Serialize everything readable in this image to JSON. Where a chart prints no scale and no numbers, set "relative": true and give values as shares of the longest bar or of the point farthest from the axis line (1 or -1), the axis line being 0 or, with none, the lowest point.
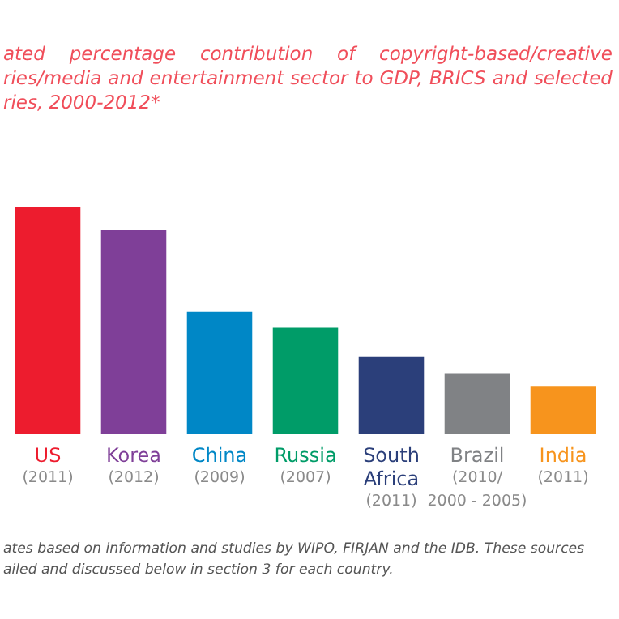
{
  "chart_data": {
    "type": "bar",
    "relative": true,
    "title": "ated percentage contribution of copyright-based/creative ries/media and entertainment sector to GDP, BRICS and selected ries, 2000-2012*",
    "categories": [
      "US\n(2011)",
      "Korea\n(2012)",
      "China\n(2009)",
      "Russia\n(2007)",
      "South\nAfrica\n(2011)",
      "Brazil\n(2010/\n2000 - 2005)",
      "India\n(2011)"
    ],
    "values": [
      1,
      0.9,
      0.54,
      0.47,
      0.34,
      0.27,
      0.21
    ],
    "colors": [
      "#ed1c2e",
      "#7f3f98",
      "#0087c6",
      "#009c68",
      "#2b3f7a",
      "#808285",
      "#f7941d"
    ],
    "annotations": [
      "ates based on information and studies by WIPO, FIRJAN and the IDB. These sources ailed and discussed below in section 3 for each country."
    ]
  }
}
